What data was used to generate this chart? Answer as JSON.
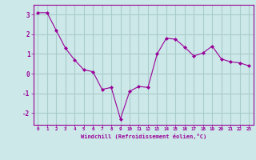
{
  "x": [
    0,
    1,
    2,
    3,
    4,
    5,
    6,
    7,
    8,
    9,
    10,
    11,
    12,
    13,
    14,
    15,
    16,
    17,
    18,
    19,
    20,
    21,
    22,
    23
  ],
  "y": [
    3.1,
    3.1,
    2.2,
    1.3,
    0.7,
    0.2,
    0.1,
    -0.8,
    -0.7,
    -2.3,
    -0.9,
    -0.65,
    -0.7,
    1.0,
    1.8,
    1.75,
    1.35,
    0.9,
    1.05,
    1.4,
    0.75,
    0.6,
    0.55,
    0.4
  ],
  "line_color": "#990099",
  "marker_color": "#990099",
  "bg_color": "#cce8e8",
  "grid_color": "#aacccc",
  "axis_color": "#990099",
  "xlabel": "Windchill (Refroidissement éolien,°C)",
  "xlim": [
    -0.5,
    23.5
  ],
  "ylim": [
    -2.6,
    3.5
  ],
  "yticks": [
    -2,
    -1,
    0,
    1,
    2,
    3
  ],
  "xticks": [
    0,
    1,
    2,
    3,
    4,
    5,
    6,
    7,
    8,
    9,
    10,
    11,
    12,
    13,
    14,
    15,
    16,
    17,
    18,
    19,
    20,
    21,
    22,
    23
  ]
}
